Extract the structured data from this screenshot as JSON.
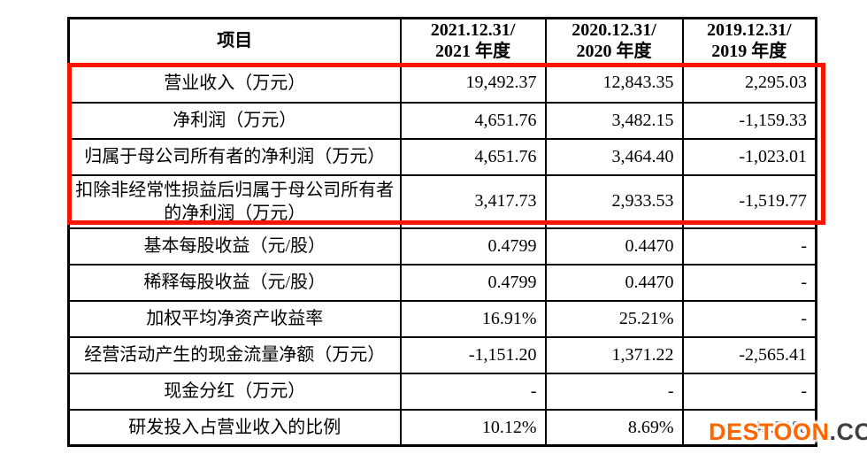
{
  "table": {
    "item_header": "项目",
    "period_headers": [
      {
        "line1": "2021.12.31/",
        "line2": "2021 年度"
      },
      {
        "line1": "2020.12.31/",
        "line2": "2020 年度"
      },
      {
        "line1": "2019.12.31/",
        "line2": "2019 年度"
      }
    ],
    "rows": [
      {
        "label": "营业收入（万元）",
        "values": [
          "19,492.37",
          "12,843.35",
          "2,295.03"
        ]
      },
      {
        "label": "净利润（万元）",
        "values": [
          "4,651.76",
          "3,482.15",
          "-1,159.33"
        ]
      },
      {
        "label": "归属于母公司所有者的净利润（万元）",
        "values": [
          "4,651.76",
          "3,464.40",
          "-1,023.01"
        ]
      },
      {
        "label": "扣除非经常性损益后归属于母公司所有者的净利润（万元）",
        "values": [
          "3,417.73",
          "2,933.53",
          "-1,519.77"
        ]
      },
      {
        "label": "基本每股收益（元/股）",
        "values": [
          "0.4799",
          "0.4470",
          "-"
        ]
      },
      {
        "label": "稀释每股收益（元/股）",
        "values": [
          "0.4799",
          "0.4470",
          "-"
        ]
      },
      {
        "label": "加权平均净资产收益率",
        "values": [
          "16.91%",
          "25.21%",
          "-"
        ]
      },
      {
        "label": "经营活动产生的现金流量净额（万元）",
        "values": [
          "-1,151.20",
          "1,371.22",
          "-2,565.41"
        ]
      },
      {
        "label": "现金分红（万元）",
        "values": [
          "-",
          "-",
          "-"
        ]
      },
      {
        "label": "研发投入占营业收入的比例",
        "values": [
          "10.12%",
          "8.69%",
          "48.71%"
        ]
      }
    ]
  },
  "annotation": {
    "highlight_color": "#f71504",
    "highlighted_row_indices": [
      0,
      1,
      2,
      3
    ]
  },
  "watermark": {
    "brand": "DESTOON",
    "suffix": ".COM",
    "brand_color": "#ff6600",
    "suffix_color": "#3f3f3f"
  }
}
